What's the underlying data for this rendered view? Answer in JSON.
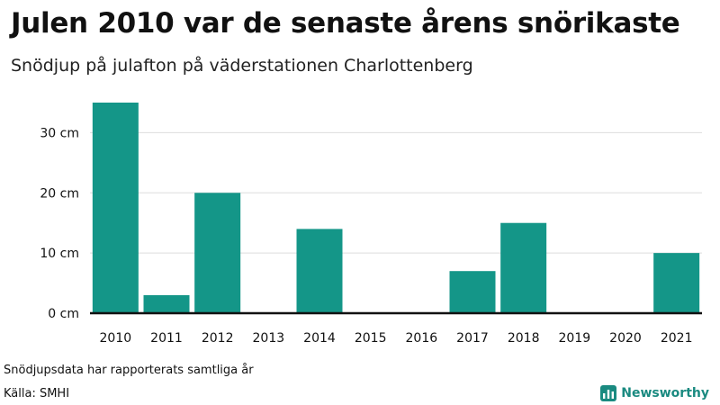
{
  "title": "Julen 2010 var de senaste årens snörikaste",
  "subtitle": "Snödjup på julafton på väderstationen Charlottenberg",
  "note": "Snödjupsdata har rapporterats samtliga år",
  "source": "Källa: SMHI",
  "brand": "Newsworthy",
  "colors": {
    "bar": "#149688",
    "brand": "#1a8a80",
    "grid": "#dddddd",
    "axis": "#111111"
  },
  "chart_data": {
    "type": "bar",
    "categories": [
      "2010",
      "2011",
      "2012",
      "2013",
      "2014",
      "2015",
      "2016",
      "2017",
      "2018",
      "2019",
      "2020",
      "2021"
    ],
    "values": [
      35,
      3,
      20,
      0,
      14,
      0,
      0,
      7,
      15,
      0,
      0,
      10
    ],
    "ylim": [
      0,
      35
    ],
    "yticks": [
      0,
      10,
      20,
      30
    ],
    "ytick_labels": [
      "0 cm",
      "10 cm",
      "20 cm",
      "30 cm"
    ],
    "grid": true
  }
}
